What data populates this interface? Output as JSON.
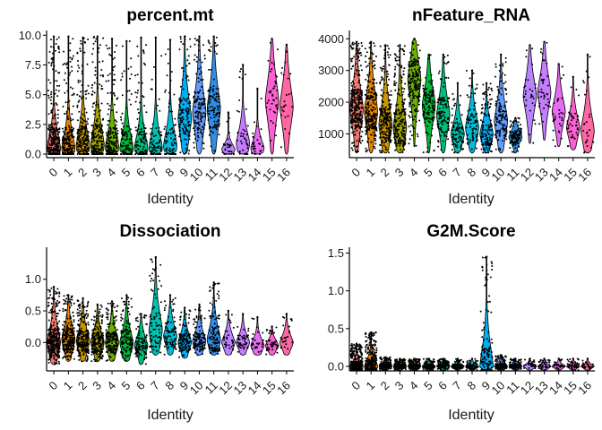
{
  "chart_data": [
    {
      "type": "violin",
      "title": "percent.mt",
      "xlabel": "Identity",
      "ylabel": "",
      "ylim": [
        -0.3,
        10.1
      ],
      "yticks": [
        "0.0",
        "2.5",
        "5.0",
        "7.5",
        "10.0"
      ],
      "ytick_values": [
        0,
        2.5,
        5,
        7.5,
        10
      ],
      "categories": [
        "0",
        "1",
        "2",
        "3",
        "4",
        "5",
        "6",
        "7",
        "8",
        "9",
        "10",
        "11",
        "12",
        "13",
        "14",
        "15",
        "16"
      ],
      "median": [
        0.5,
        0.5,
        0.7,
        0.8,
        0.6,
        0.5,
        0.5,
        0.5,
        0.7,
        3.0,
        3.5,
        3.8,
        0.4,
        0.9,
        0.5,
        4.5,
        4.0
      ],
      "max": [
        9.9,
        9.9,
        9.8,
        9.9,
        9.7,
        9.5,
        9.8,
        9.8,
        9.6,
        9.9,
        9.9,
        9.9,
        3.5,
        7.5,
        5.5,
        9.7,
        9.2
      ],
      "min": [
        0,
        0,
        0,
        0,
        0,
        0,
        0,
        0,
        0,
        0,
        0,
        0,
        0,
        0,
        0,
        0,
        0
      ],
      "n_points": [
        300,
        240,
        220,
        200,
        180,
        120,
        110,
        80,
        80,
        130,
        130,
        110,
        30,
        40,
        30,
        40,
        25
      ],
      "skew": [
        2.2,
        2.2,
        1.8,
        1.6,
        2.0,
        2.2,
        2.2,
        2.2,
        1.9,
        1.0,
        0.9,
        0.9,
        2.2,
        1.6,
        2.0,
        0.8,
        0.8
      ]
    },
    {
      "type": "violin",
      "title": "nFeature_RNA",
      "xlabel": "Identity",
      "ylabel": "",
      "ylim": [
        250,
        4150
      ],
      "yticks": [
        "1000",
        "2000",
        "3000",
        "4000"
      ],
      "ytick_values": [
        1000,
        2000,
        3000,
        4000
      ],
      "categories": [
        "0",
        "1",
        "2",
        "3",
        "4",
        "5",
        "6",
        "7",
        "8",
        "9",
        "10",
        "11",
        "12",
        "13",
        "14",
        "15",
        "16"
      ],
      "median": [
        1800,
        1700,
        1300,
        1200,
        2700,
        1900,
        1600,
        1000,
        1200,
        1000,
        1400,
        900,
        2200,
        2300,
        1700,
        1200,
        1100
      ],
      "max": [
        3900,
        3900,
        3800,
        3800,
        4000,
        3500,
        3500,
        2600,
        3000,
        2600,
        3500,
        1500,
        3800,
        3900,
        3200,
        2800,
        3500
      ],
      "min": [
        400,
        400,
        400,
        400,
        600,
        400,
        400,
        400,
        400,
        400,
        400,
        400,
        700,
        800,
        600,
        500,
        400
      ],
      "n_points": [
        300,
        240,
        220,
        200,
        180,
        120,
        110,
        80,
        80,
        130,
        130,
        110,
        30,
        40,
        30,
        40,
        25
      ],
      "skew": [
        1.0,
        1.0,
        1.1,
        1.1,
        0.9,
        1.0,
        1.0,
        1.2,
        1.1,
        1.2,
        1.0,
        1.0,
        1.0,
        1.0,
        1.0,
        1.1,
        1.2
      ]
    },
    {
      "type": "violin",
      "title": "Dissociation",
      "xlabel": "Identity",
      "ylabel": "",
      "ylim": [
        -0.45,
        1.45
      ],
      "yticks": [
        "0.0",
        "0.5",
        "1.0"
      ],
      "ytick_values": [
        0,
        0.5,
        1
      ],
      "categories": [
        "0",
        "1",
        "2",
        "3",
        "4",
        "5",
        "6",
        "7",
        "8",
        "9",
        "10",
        "11",
        "12",
        "13",
        "14",
        "15",
        "16"
      ],
      "median": [
        0.0,
        0.05,
        0.02,
        0.0,
        0.0,
        0.0,
        -0.05,
        0.2,
        0.1,
        0.0,
        0.02,
        0.05,
        0.0,
        0.0,
        -0.05,
        -0.05,
        0.0
      ],
      "max": [
        0.88,
        0.75,
        0.7,
        0.6,
        0.65,
        0.75,
        0.45,
        1.35,
        0.75,
        0.55,
        0.6,
        0.95,
        0.5,
        0.45,
        0.4,
        0.25,
        0.45
      ],
      "min": [
        -0.35,
        -0.3,
        -0.3,
        -0.3,
        -0.3,
        -0.3,
        -0.35,
        -0.2,
        -0.2,
        -0.25,
        -0.2,
        -0.2,
        -0.2,
        -0.2,
        -0.2,
        -0.2,
        -0.2
      ],
      "n_points": [
        300,
        240,
        220,
        200,
        180,
        120,
        110,
        80,
        80,
        130,
        130,
        110,
        30,
        40,
        30,
        40,
        25
      ],
      "skew": [
        1.0,
        1.0,
        1.0,
        1.0,
        1.0,
        1.0,
        1.0,
        1.0,
        1.0,
        1.0,
        1.0,
        1.0,
        1.0,
        1.0,
        1.0,
        1.0,
        1.0
      ]
    },
    {
      "type": "violin",
      "title": "G2M.Score",
      "xlabel": "Identity",
      "ylabel": "",
      "ylim": [
        -0.06,
        1.53
      ],
      "yticks": [
        "0.0",
        "0.5",
        "1.0",
        "1.5"
      ],
      "ytick_values": [
        0,
        0.5,
        1,
        1.5
      ],
      "categories": [
        "0",
        "1",
        "2",
        "3",
        "4",
        "5",
        "6",
        "7",
        "8",
        "9",
        "10",
        "11",
        "12",
        "13",
        "14",
        "15",
        "16"
      ],
      "median": [
        0,
        0,
        0,
        0,
        0,
        0,
        0,
        0,
        0,
        0,
        0,
        0,
        0,
        0,
        0,
        0,
        0
      ],
      "max": [
        0.3,
        0.45,
        0.12,
        0.1,
        0.1,
        0.1,
        0.1,
        0.1,
        0.1,
        1.45,
        0.15,
        0.1,
        0.1,
        0.1,
        0.1,
        0.1,
        0.1
      ],
      "min": [
        -0.05,
        -0.05,
        -0.05,
        -0.05,
        -0.05,
        -0.05,
        -0.05,
        -0.05,
        -0.05,
        -0.05,
        -0.05,
        -0.05,
        -0.05,
        -0.05,
        -0.05,
        -0.05,
        -0.05
      ],
      "n_points": [
        300,
        240,
        220,
        200,
        180,
        120,
        110,
        80,
        80,
        130,
        130,
        110,
        30,
        40,
        30,
        40,
        25
      ],
      "skew": [
        1.0,
        1.0,
        1.0,
        1.0,
        1.0,
        1.0,
        1.0,
        1.0,
        1.0,
        1.0,
        1.0,
        1.0,
        1.0,
        1.0,
        1.0,
        1.0,
        1.0
      ]
    }
  ],
  "palette": [
    "#F8766D",
    "#E58700",
    "#C99800",
    "#A3A500",
    "#6BB100",
    "#00BA38",
    "#00BF7D",
    "#00C0AF",
    "#00BCD8",
    "#00B0F6",
    "#619CFF",
    "#2E8FE8",
    "#B983FF",
    "#C77CFF",
    "#E76BF3",
    "#FD61D1",
    "#FF67A4"
  ]
}
